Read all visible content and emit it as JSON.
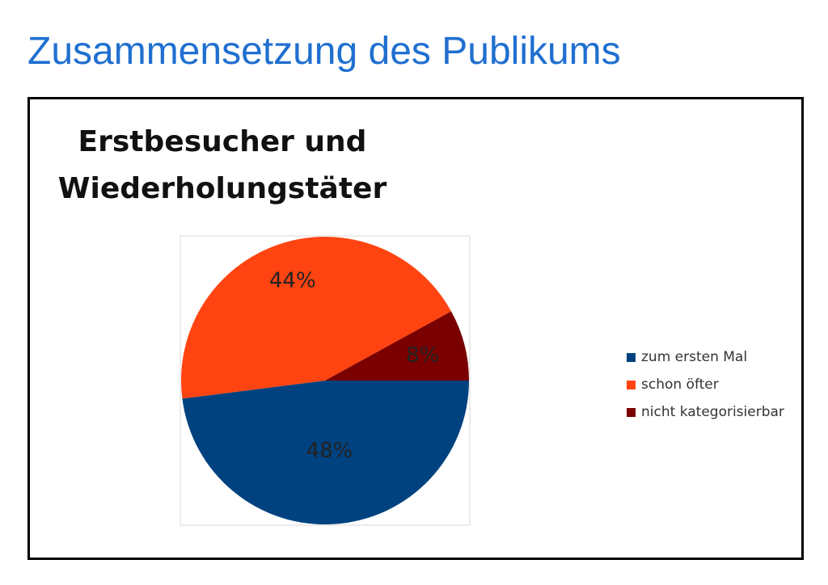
{
  "slide": {
    "title": "Zusammensetzung des Publikums"
  },
  "chart_data": {
    "type": "pie",
    "title": "Erstbesucher und Wiederholungstäter",
    "slices": [
      {
        "name": "zum ersten Mal",
        "value": 48,
        "label": "48%",
        "color": "#00427f"
      },
      {
        "name": "schon öfter",
        "value": 44,
        "label": "44%",
        "color": "#ff4411"
      },
      {
        "name": "nicht kategorisierbar",
        "value": 8,
        "label": "8%",
        "color": "#7b0000"
      }
    ],
    "legend": {
      "position": "right",
      "entries": [
        "zum ersten Mal",
        "schon öfter",
        "nicht kategorisierbar"
      ]
    }
  }
}
